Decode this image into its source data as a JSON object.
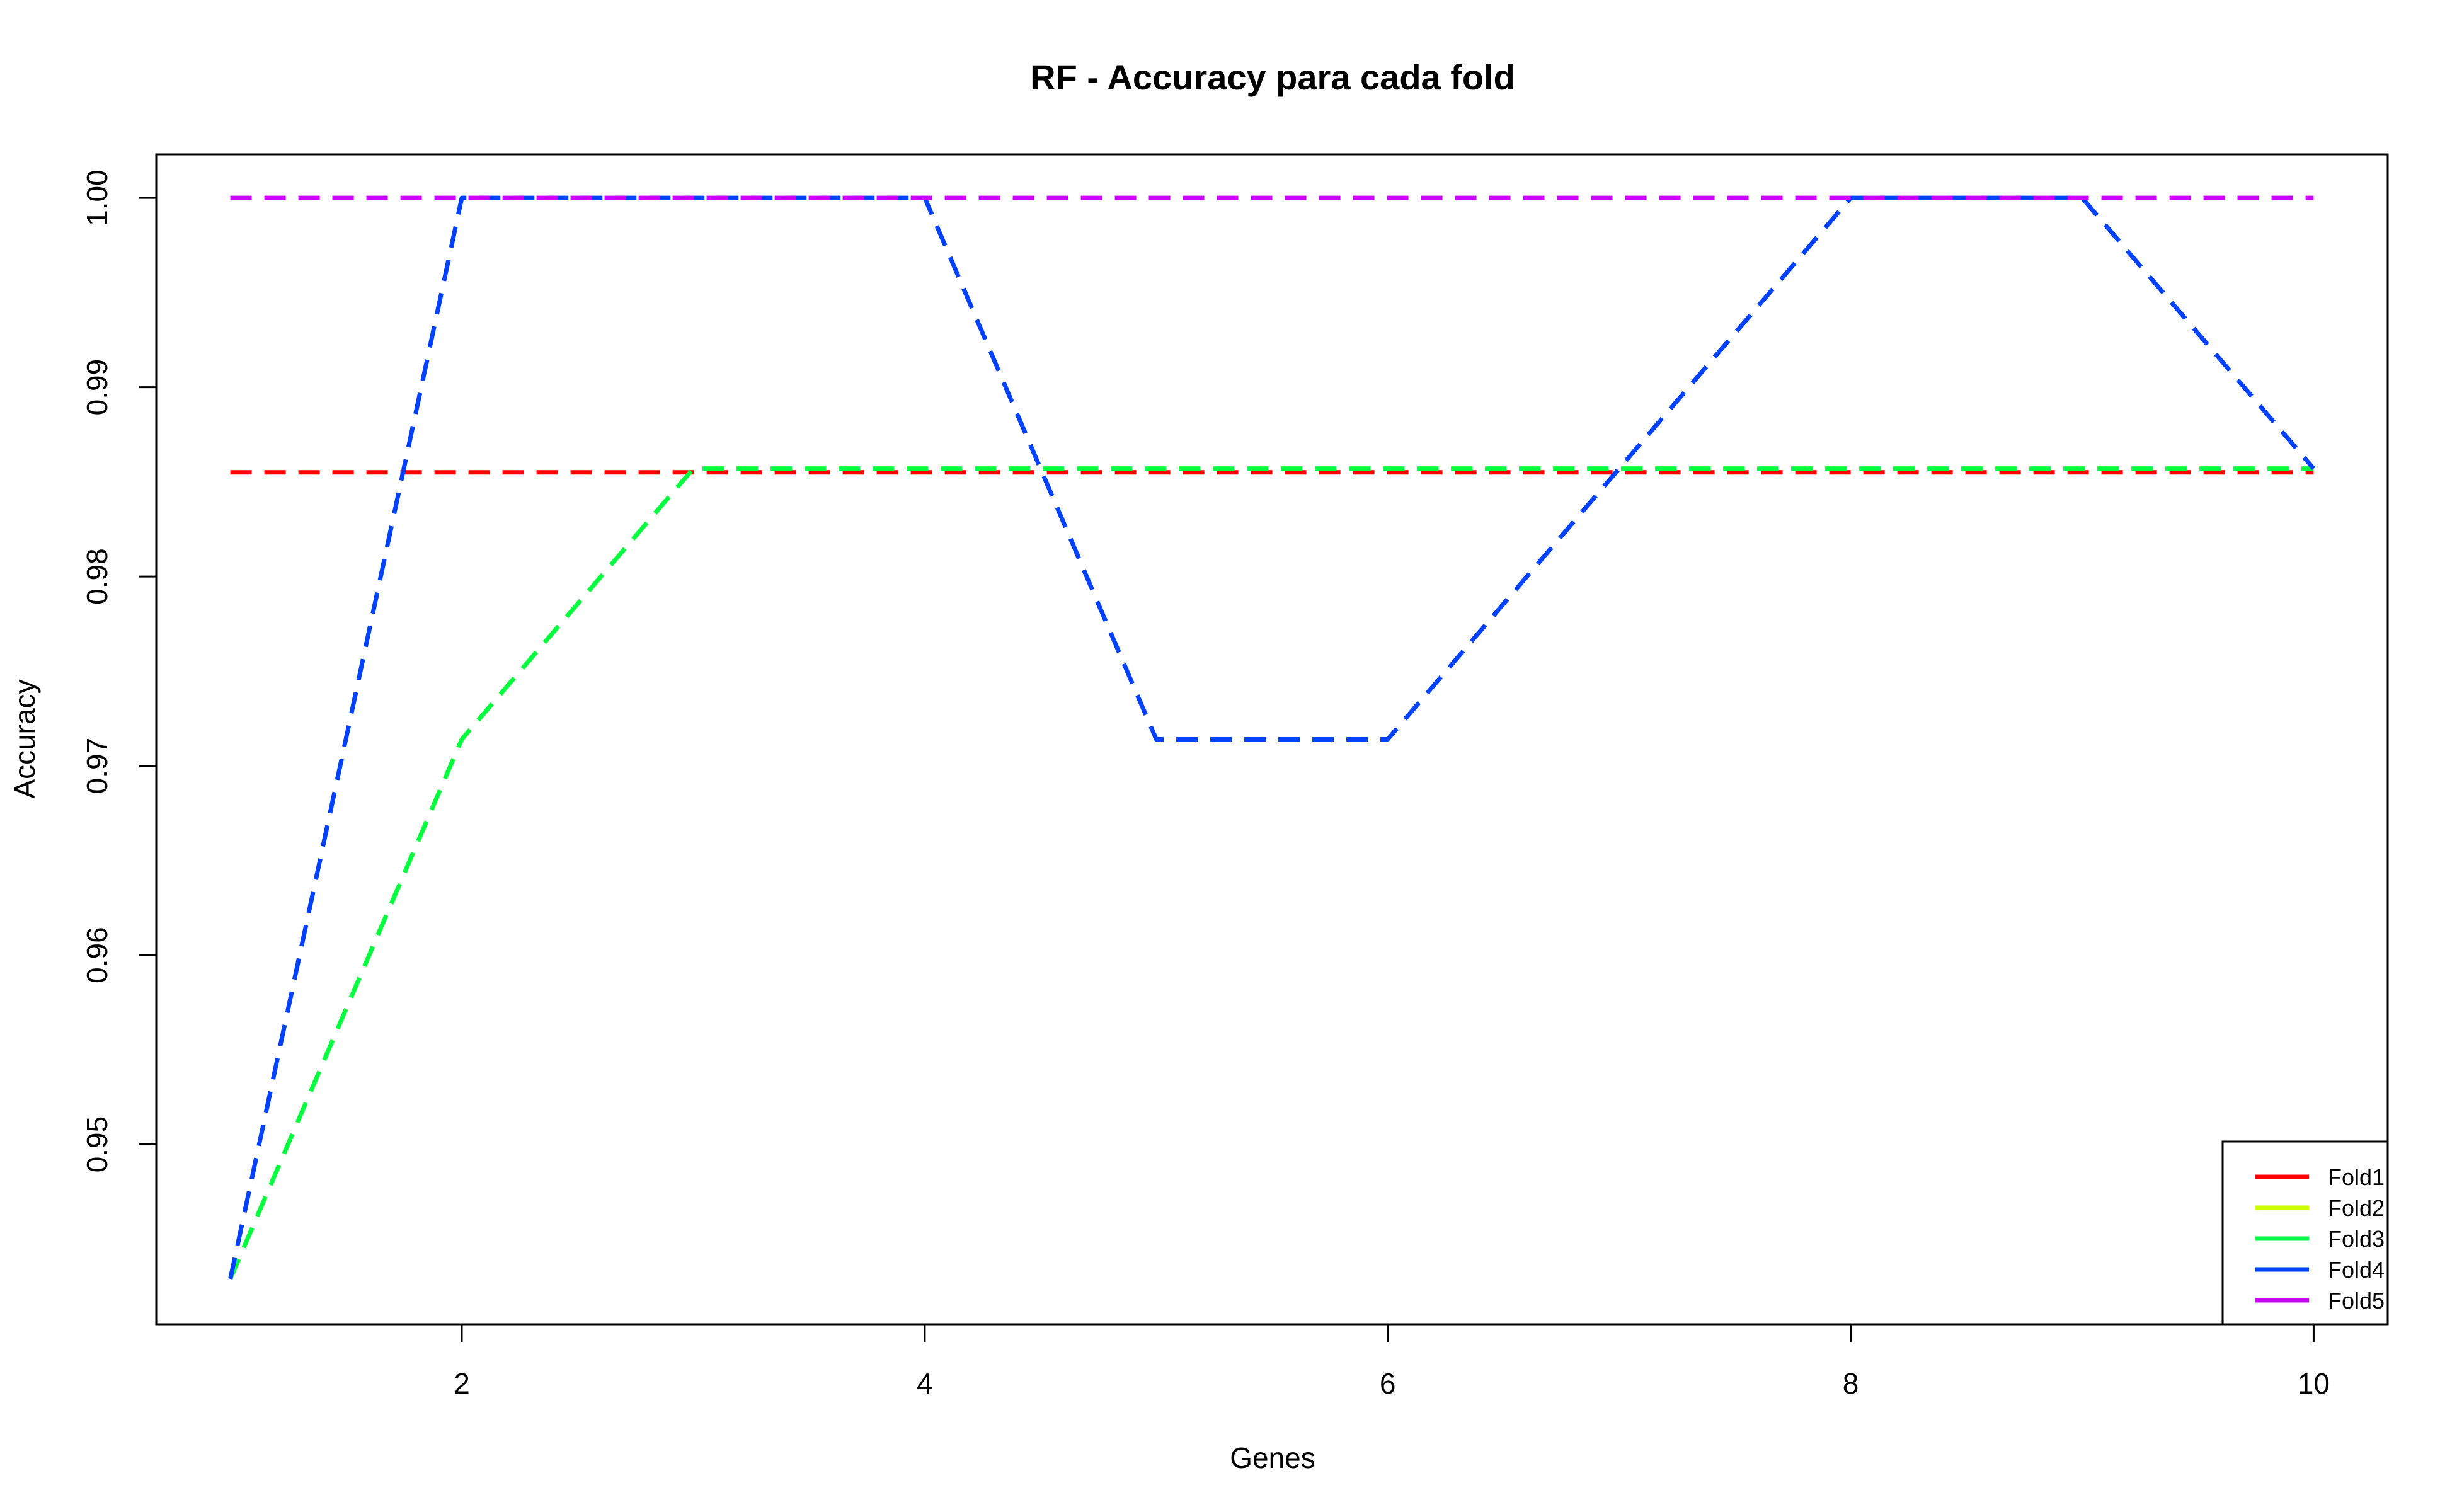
{
  "chart_data": {
    "type": "line",
    "title": "RF - Accuracy para cada fold",
    "xlabel": "Genes",
    "ylabel": "Accuracy",
    "xlim": [
      0.68,
      10.32
    ],
    "ylim": [
      0.9405,
      1.0023
    ],
    "xticks": [
      2,
      4,
      6,
      8,
      10
    ],
    "yticks": [
      0.95,
      0.96,
      0.97,
      0.98,
      0.99,
      1.0
    ],
    "ytick_labels": [
      "0.95",
      "0.96",
      "0.97",
      "0.98",
      "0.99",
      "1.00"
    ],
    "x": [
      1,
      2,
      3,
      4,
      5,
      6,
      7,
      8,
      9,
      10
    ],
    "line_style": "dashed",
    "legend_position": "bottom-right",
    "grid": false,
    "series": [
      {
        "name": "Fold1",
        "color": "#ff0000",
        "values": [
          0.9855,
          0.9855,
          0.9855,
          0.9855,
          0.9855,
          0.9855,
          0.9855,
          0.9855,
          0.9855,
          0.9855
        ]
      },
      {
        "name": "Fold2",
        "color": "#ccff00",
        "values": [
          0.9429,
          0.9714,
          0.9857,
          0.9857,
          0.9857,
          0.9857,
          0.9857,
          0.9857,
          0.9857,
          0.9857
        ]
      },
      {
        "name": "Fold3",
        "color": "#00ff40",
        "values": [
          0.9429,
          0.9714,
          0.9857,
          0.9857,
          0.9857,
          0.9857,
          0.9857,
          0.9857,
          0.9857,
          0.9857
        ]
      },
      {
        "name": "Fold4",
        "color": "#0040ff",
        "values": [
          0.9429,
          1.0,
          1.0,
          1.0,
          0.9714,
          0.9714,
          0.9857,
          1.0,
          1.0,
          0.9857
        ]
      },
      {
        "name": "Fold5",
        "color": "#cc00ff",
        "values": [
          1.0,
          1.0,
          1.0,
          1.0,
          1.0,
          1.0,
          1.0,
          1.0,
          1.0,
          1.0
        ]
      }
    ]
  }
}
